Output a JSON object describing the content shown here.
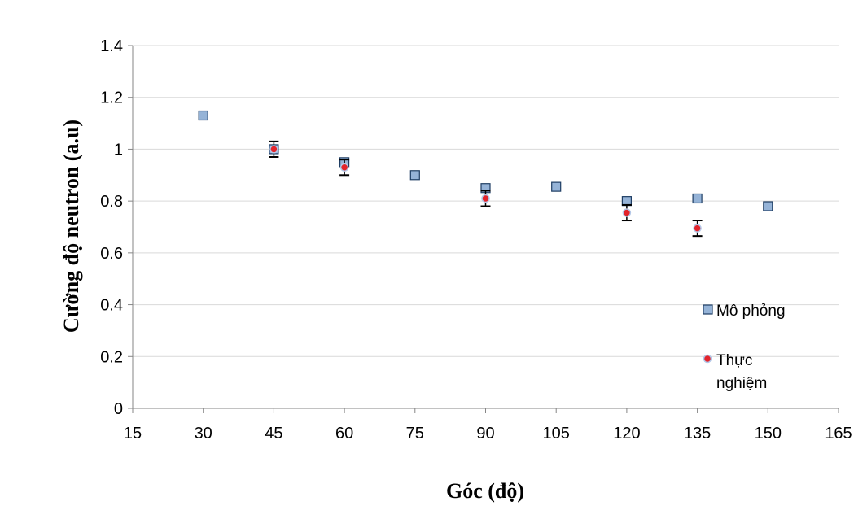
{
  "chart_data": {
    "type": "scatter",
    "title": "",
    "xlabel": "Góc (độ)",
    "ylabel": "Cường độ neutron (a.u)",
    "xlim": [
      15,
      165
    ],
    "ylim": [
      0,
      1.4
    ],
    "xticks": [
      15,
      30,
      45,
      60,
      75,
      90,
      105,
      120,
      135,
      150,
      165
    ],
    "yticks": [
      0,
      0.2,
      0.4,
      0.6,
      0.8,
      1,
      1.2,
      1.4
    ],
    "ytick_labels": [
      "0",
      "0.2",
      "0.4",
      "0.6",
      "0.8",
      "1",
      "1.2",
      "1.4"
    ],
    "grid": "horizontal",
    "legend_position": "right",
    "series": [
      {
        "name": "Mô phỏng",
        "marker": "square",
        "color": "#95B3D7",
        "edge_color": "#1F3E64",
        "x": [
          30,
          45,
          60,
          75,
          90,
          105,
          120,
          135,
          150
        ],
        "y": [
          1.13,
          1.0,
          0.95,
          0.9,
          0.85,
          0.855,
          0.8,
          0.81,
          0.78
        ]
      },
      {
        "name": "Thực nghiệm",
        "marker": "circle",
        "color": "#E3242B",
        "edge_color": "#B4C7E7",
        "x": [
          45,
          60,
          90,
          120,
          135
        ],
        "y": [
          1.0,
          0.93,
          0.81,
          0.755,
          0.695
        ],
        "error": [
          0.03,
          0.03,
          0.03,
          0.03,
          0.03
        ]
      }
    ]
  }
}
